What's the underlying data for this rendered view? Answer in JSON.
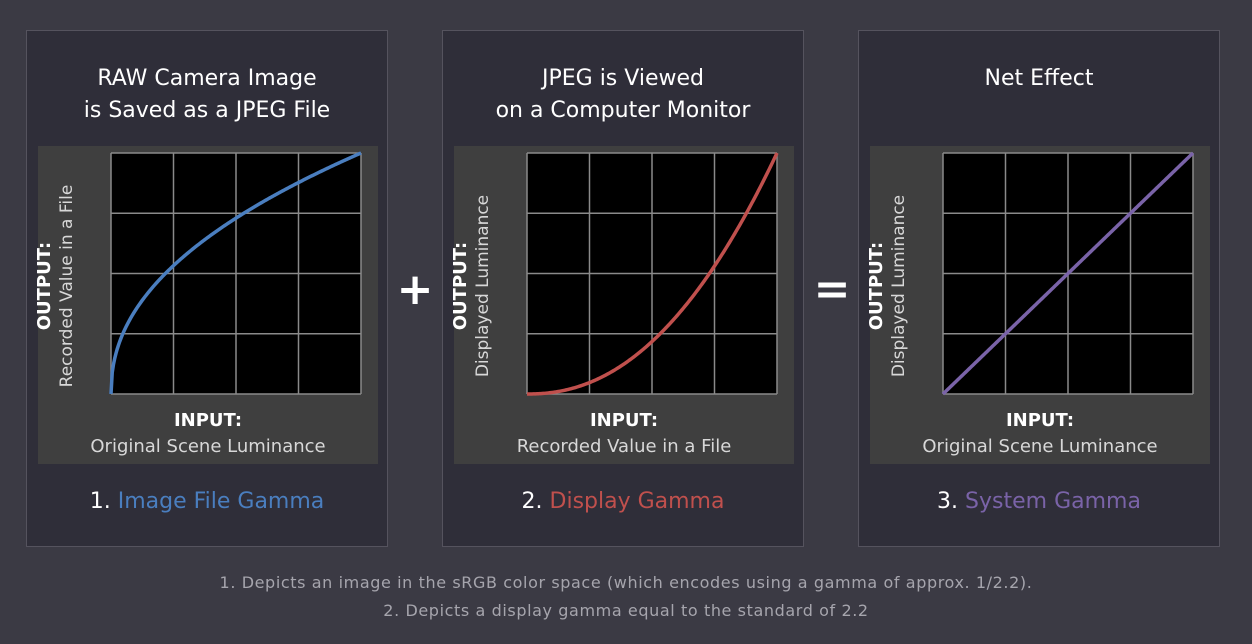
{
  "panels": [
    {
      "title_line1": "RAW Camera Image",
      "title_line2": "is Saved as a JPEG File",
      "ylabel_bold": "OUTPUT:",
      "ylabel_text": "Recorded Value in a File",
      "xlabel_bold": "INPUT:",
      "xlabel_text": "Original Scene Luminance",
      "caption_num": "1.",
      "caption_text": "Image File Gamma",
      "color": "#4a7ebf",
      "gamma": 0.4545
    },
    {
      "title_line1": "JPEG is Viewed",
      "title_line2": "on a Computer Monitor",
      "ylabel_bold": "OUTPUT:",
      "ylabel_text": "Displayed Luminance",
      "xlabel_bold": "INPUT:",
      "xlabel_text": "Recorded Value in a File",
      "caption_num": "2.",
      "caption_text": "Display Gamma",
      "color": "#c0504d",
      "gamma": 2.2
    },
    {
      "title_line1": "Net Effect",
      "title_line2": "",
      "ylabel_bold": "OUTPUT:",
      "ylabel_text": "Displayed Luminance",
      "xlabel_bold": "INPUT:",
      "xlabel_text": "Original Scene Luminance",
      "caption_num": "3.",
      "caption_text": "System Gamma",
      "color": "#7a63a8",
      "gamma": 1.0
    }
  ],
  "operators": {
    "plus": "+",
    "equals": "="
  },
  "footnotes": {
    "line1": "1. Depicts an image in the sRGB color space (which encodes using a gamma of approx. 1/2.2).",
    "line2": "2. Depicts a display gamma equal to the standard of 2.2"
  }
}
